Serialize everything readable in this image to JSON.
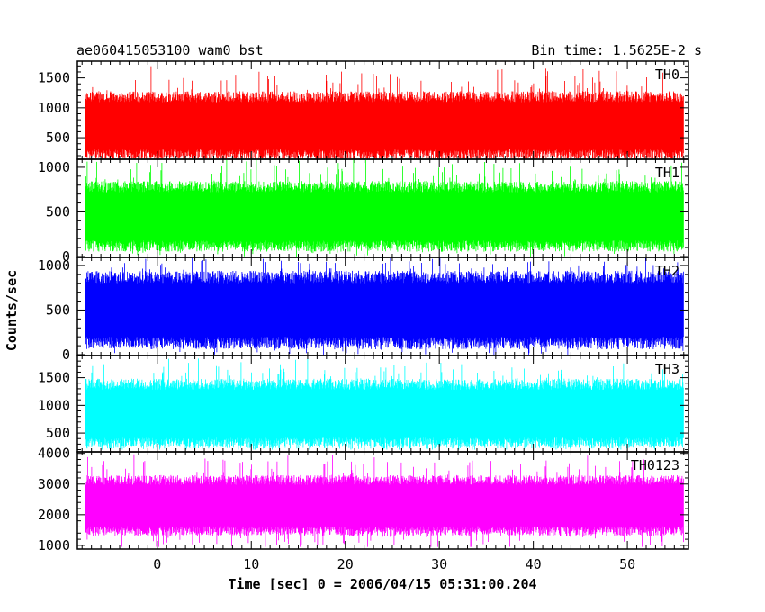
{
  "header": {
    "title": "ae060415053100_wam0_bst",
    "bin_time": "Bin time: 1.5625E-2 s"
  },
  "colors": {
    "TH0": "#ff0000",
    "TH1": "#00ff00",
    "TH2": "#0000ff",
    "TH3": "#00ffff",
    "TH0123": "#ff00ff"
  },
  "chart_data": {
    "type": "line",
    "title": "ae060415053100_wam0_bst",
    "subtitle": "Bin time: 1.5625E-2 s",
    "xlabel": "Time [sec] 0 = 2006/04/15 05:31:00.204",
    "ylabel": "Counts/sec",
    "xlim": [
      -8.5,
      56.5
    ],
    "x_ticks": [
      0,
      10,
      20,
      30,
      40,
      50
    ],
    "x_tick_labels": [
      "0",
      "10",
      "20",
      "30",
      "40",
      "50"
    ],
    "data_x_range": [
      -7.6,
      56.0
    ],
    "grid": false,
    "panels": [
      {
        "name": "TH0",
        "ylim": [
          140,
          1780
        ],
        "y_ticks": [
          500,
          1000,
          1500
        ],
        "y_tick_labels": [
          "500",
          "1000",
          "1500"
        ],
        "mean": 700,
        "typical_range": [
          250,
          1300
        ],
        "min": 150,
        "max": 1750
      },
      {
        "name": "TH1",
        "ylim": [
          -10,
          1090
        ],
        "y_ticks": [
          0,
          500,
          1000
        ],
        "y_tick_labels": [
          "0",
          "500",
          "1000"
        ],
        "mean": 450,
        "typical_range": [
          80,
          800
        ],
        "min": 0,
        "max": 1080
      },
      {
        "name": "TH2",
        "ylim": [
          -10,
          1090
        ],
        "y_ticks": [
          0,
          500,
          1000
        ],
        "y_tick_labels": [
          "0",
          "500",
          "1000"
        ],
        "mean": 500,
        "typical_range": [
          100,
          900
        ],
        "min": 0,
        "max": 1080
      },
      {
        "name": "TH3",
        "ylim": [
          160,
          1900
        ],
        "y_ticks": [
          500,
          1000,
          1500
        ],
        "y_tick_labels": [
          "500",
          "1000",
          "1500"
        ],
        "mean": 850,
        "typical_range": [
          350,
          1500
        ],
        "min": 200,
        "max": 1880
      },
      {
        "name": "TH0123",
        "ylim": [
          880,
          4050
        ],
        "y_ticks": [
          1000,
          2000,
          3000,
          4000
        ],
        "y_tick_labels": [
          "1000",
          "2000",
          "3000",
          "4000"
        ],
        "mean": 2300,
        "typical_range": [
          1500,
          3300
        ],
        "min": 950,
        "max": 4000
      }
    ]
  }
}
